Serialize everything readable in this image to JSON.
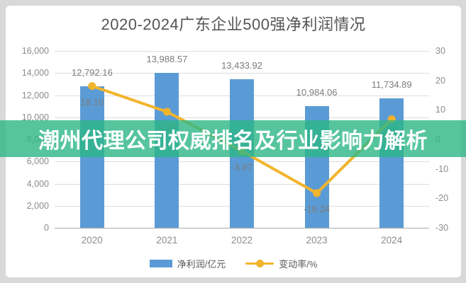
{
  "title": "2020-2024广东企业500强净利润情况",
  "overlay_banner": {
    "text": "潮州代理公司权威排名及行业影响力解析",
    "bg_rgba": "rgba(44,183,134,0.8)",
    "text_color": "#FFFFFF"
  },
  "colors": {
    "frame_bg": "#D9D9D9",
    "card_bg": "#FFFFFF",
    "title": "#555555",
    "bar": "#5B9BD5",
    "line": "#F1B42C",
    "grid": "#DCDCDC",
    "axis_line": "#ABABAB",
    "tick_label": "#8C8C8C",
    "value_label": "#7C7C7C"
  },
  "chart_data": {
    "type": "bar+line combo",
    "title": "2020-2024广东企业500强净利润情况",
    "categories": [
      "2020",
      "2021",
      "2022",
      "2023",
      "2024"
    ],
    "series": [
      {
        "name": "净利润/亿元",
        "type": "bar",
        "axis": "left",
        "values": [
          12792.16,
          13988.57,
          13433.92,
          10984.06,
          11734.89
        ],
        "labels": [
          "12,792.16",
          "13,988.57",
          "13,433.92",
          "10,984.06",
          "11,734.89"
        ]
      },
      {
        "name": "变动率/%",
        "type": "line",
        "axis": "right",
        "values": [
          18.1,
          9.35,
          -3.97,
          -18.24,
          6.84
        ],
        "labels": [
          "18.10",
          "9.35",
          "-3.97",
          "-18.24",
          "6.84"
        ]
      }
    ],
    "left_axis": {
      "min": 0,
      "max": 16000,
      "step": 2000,
      "tick_labels_top_down": [
        "16,000",
        "14,000",
        "12,000",
        "10,000",
        "8,000",
        "6,000",
        "4,000",
        "2,000",
        "0"
      ]
    },
    "right_axis": {
      "min": -30,
      "max": 30,
      "step": 10,
      "tick_labels_top_down": [
        "30",
        "20",
        "10",
        "0",
        "-10",
        "-20",
        "-30"
      ]
    },
    "grid": true,
    "legend_position": "bottom",
    "legend": [
      {
        "label": "净利润/亿元",
        "swatch": "bar-blue"
      },
      {
        "label": "变动率/%",
        "swatch": "line-yellow"
      }
    ]
  }
}
